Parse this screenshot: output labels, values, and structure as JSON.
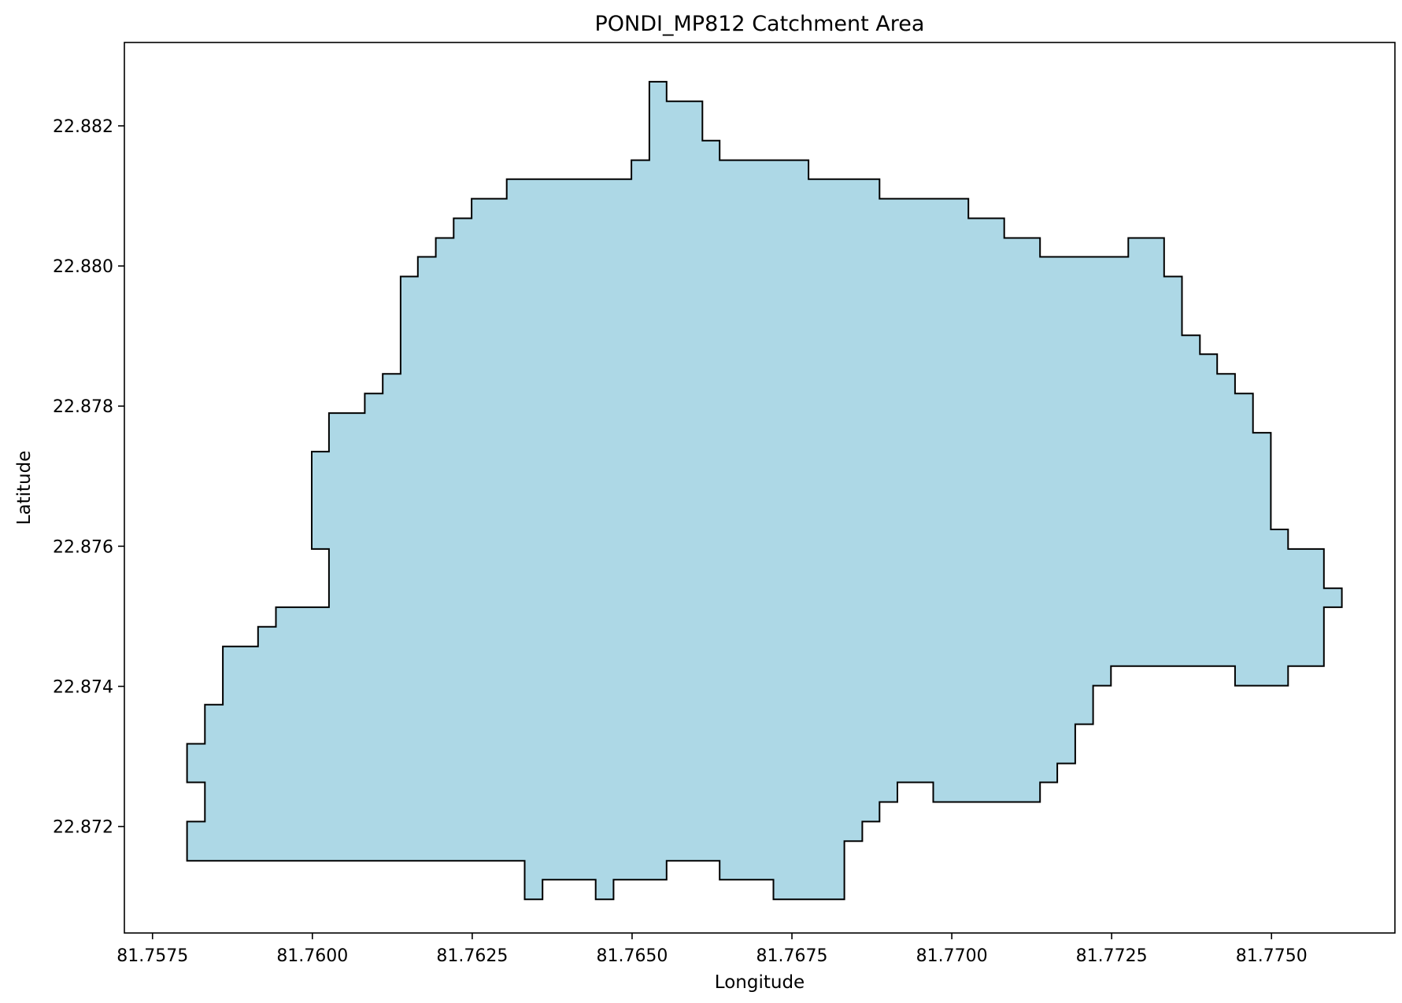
{
  "chart_data": {
    "type": "polygon-map",
    "title": "PONDI_MP812 Catchment Area",
    "xlabel": "Longitude",
    "ylabel": "Latitude",
    "xlim": [
      81.75706,
      81.77693
    ],
    "ylim": [
      22.87048,
      22.88319
    ],
    "x_ticks": [
      {
        "value": 81.7575,
        "label": "81.7575"
      },
      {
        "value": 81.76,
        "label": "81.7600"
      },
      {
        "value": 81.7625,
        "label": "81.7625"
      },
      {
        "value": 81.765,
        "label": "81.7650"
      },
      {
        "value": 81.7675,
        "label": "81.7675"
      },
      {
        "value": 81.77,
        "label": "81.7700"
      },
      {
        "value": 81.7725,
        "label": "81.7725"
      },
      {
        "value": 81.775,
        "label": "81.7750"
      }
    ],
    "y_ticks": [
      {
        "value": 22.872,
        "label": "22.872"
      },
      {
        "value": 22.874,
        "label": "22.874"
      },
      {
        "value": 22.876,
        "label": "22.876"
      },
      {
        "value": 22.878,
        "label": "22.878"
      },
      {
        "value": 22.88,
        "label": "22.880"
      },
      {
        "value": 22.882,
        "label": "22.882"
      }
    ],
    "fill_color": "#add8e6",
    "edge_color": "#000000",
    "polygon": [
      [
        81.76527,
        22.88263
      ],
      [
        81.76554,
        22.88263
      ],
      [
        81.76554,
        22.88235
      ],
      [
        81.7661,
        22.88235
      ],
      [
        81.7661,
        22.88179
      ],
      [
        81.76637,
        22.88179
      ],
      [
        81.76637,
        22.88151
      ],
      [
        81.76776,
        22.88151
      ],
      [
        81.76776,
        22.88124
      ],
      [
        81.76887,
        22.88124
      ],
      [
        81.76887,
        22.88096
      ],
      [
        81.77026,
        22.88096
      ],
      [
        81.77026,
        22.88068
      ],
      [
        81.77082,
        22.88068
      ],
      [
        81.77082,
        22.8804
      ],
      [
        81.77138,
        22.8804
      ],
      [
        81.77138,
        22.88013
      ],
      [
        81.77276,
        22.88013
      ],
      [
        81.77276,
        22.8804
      ],
      [
        81.77332,
        22.8804
      ],
      [
        81.77332,
        22.87985
      ],
      [
        81.7736,
        22.87985
      ],
      [
        81.7736,
        22.87901
      ],
      [
        81.77388,
        22.87901
      ],
      [
        81.77388,
        22.87874
      ],
      [
        81.77415,
        22.87874
      ],
      [
        81.77415,
        22.87846
      ],
      [
        81.77443,
        22.87846
      ],
      [
        81.77443,
        22.87818
      ],
      [
        81.77471,
        22.87818
      ],
      [
        81.77471,
        22.87762
      ],
      [
        81.77499,
        22.87762
      ],
      [
        81.77499,
        22.87624
      ],
      [
        81.77526,
        22.87624
      ],
      [
        81.77526,
        22.87596
      ],
      [
        81.77582,
        22.87596
      ],
      [
        81.77582,
        22.8754
      ],
      [
        81.7761,
        22.8754
      ],
      [
        81.7761,
        22.87513
      ],
      [
        81.77582,
        22.87513
      ],
      [
        81.77582,
        22.87429
      ],
      [
        81.77526,
        22.87429
      ],
      [
        81.77526,
        22.87401
      ],
      [
        81.77443,
        22.87401
      ],
      [
        81.77443,
        22.87429
      ],
      [
        81.77249,
        22.87429
      ],
      [
        81.77249,
        22.87401
      ],
      [
        81.77221,
        22.87401
      ],
      [
        81.77221,
        22.87346
      ],
      [
        81.77193,
        22.87346
      ],
      [
        81.77193,
        22.8729
      ],
      [
        81.77165,
        22.8729
      ],
      [
        81.77165,
        22.87263
      ],
      [
        81.77138,
        22.87263
      ],
      [
        81.77138,
        22.87235
      ],
      [
        81.76971,
        22.87235
      ],
      [
        81.76971,
        22.87263
      ],
      [
        81.76915,
        22.87263
      ],
      [
        81.76915,
        22.87235
      ],
      [
        81.76887,
        22.87235
      ],
      [
        81.76887,
        22.87207
      ],
      [
        81.7686,
        22.87207
      ],
      [
        81.7686,
        22.87179
      ],
      [
        81.76832,
        22.87179
      ],
      [
        81.76832,
        22.87096
      ],
      [
        81.76721,
        22.87096
      ],
      [
        81.76721,
        22.87124
      ],
      [
        81.76637,
        22.87124
      ],
      [
        81.76637,
        22.87151
      ],
      [
        81.76554,
        22.87151
      ],
      [
        81.76554,
        22.87124
      ],
      [
        81.76471,
        22.87124
      ],
      [
        81.76471,
        22.87096
      ],
      [
        81.76443,
        22.87096
      ],
      [
        81.76443,
        22.87124
      ],
      [
        81.7636,
        22.87124
      ],
      [
        81.7636,
        22.87096
      ],
      [
        81.76332,
        22.87096
      ],
      [
        81.76332,
        22.87151
      ],
      [
        81.75804,
        22.87151
      ],
      [
        81.75804,
        22.87207
      ],
      [
        81.75832,
        22.87207
      ],
      [
        81.75832,
        22.87263
      ],
      [
        81.75804,
        22.87263
      ],
      [
        81.75804,
        22.87318
      ],
      [
        81.75832,
        22.87318
      ],
      [
        81.75832,
        22.87374
      ],
      [
        81.7586,
        22.87374
      ],
      [
        81.7586,
        22.87457
      ],
      [
        81.75915,
        22.87457
      ],
      [
        81.75915,
        22.87485
      ],
      [
        81.75943,
        22.87485
      ],
      [
        81.75943,
        22.87513
      ],
      [
        81.76026,
        22.87513
      ],
      [
        81.76026,
        22.87596
      ],
      [
        81.75999,
        22.87596
      ],
      [
        81.75999,
        22.87735
      ],
      [
        81.76026,
        22.87735
      ],
      [
        81.76026,
        22.8779
      ],
      [
        81.76082,
        22.8779
      ],
      [
        81.76082,
        22.87818
      ],
      [
        81.7611,
        22.87818
      ],
      [
        81.7611,
        22.87846
      ],
      [
        81.76138,
        22.87846
      ],
      [
        81.76138,
        22.87985
      ],
      [
        81.76165,
        22.87985
      ],
      [
        81.76165,
        22.88013
      ],
      [
        81.76193,
        22.88013
      ],
      [
        81.76193,
        22.8804
      ],
      [
        81.76221,
        22.8804
      ],
      [
        81.76221,
        22.88068
      ],
      [
        81.76249,
        22.88068
      ],
      [
        81.76249,
        22.88096
      ],
      [
        81.76304,
        22.88096
      ],
      [
        81.76304,
        22.88124
      ],
      [
        81.76499,
        22.88124
      ],
      [
        81.76499,
        22.88151
      ],
      [
        81.76527,
        22.88151
      ]
    ]
  }
}
